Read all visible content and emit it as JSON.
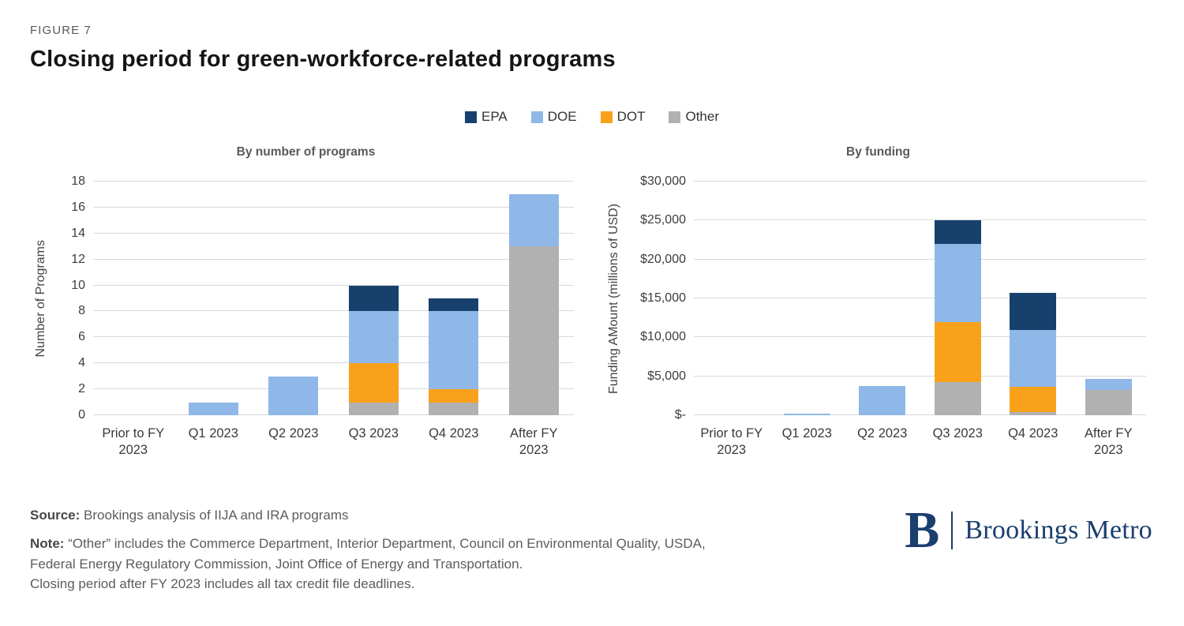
{
  "figure": {
    "eyebrow": "FIGURE 7",
    "title": "Closing period for green-workforce-related programs"
  },
  "legend": [
    {
      "label": "EPA",
      "color": "#17406d"
    },
    {
      "label": "DOE",
      "color": "#8fb8e8"
    },
    {
      "label": "DOT",
      "color": "#f9a11b"
    },
    {
      "label": "Other",
      "color": "#b1b1b1"
    }
  ],
  "chart_data": [
    {
      "type": "bar",
      "stacked": true,
      "title": "By number of programs",
      "xlabel": "",
      "ylabel": "Number of Programs",
      "categories": [
        "Prior to FY 2023",
        "Q1 2023",
        "Q2 2023",
        "Q3 2023",
        "Q4 2023",
        "After FY 2023"
      ],
      "ylim": [
        0,
        18
      ],
      "grid": true,
      "legend_position": "top-center",
      "yticks": [
        {
          "value": 0,
          "label": "0"
        },
        {
          "value": 2,
          "label": "2"
        },
        {
          "value": 4,
          "label": "4"
        },
        {
          "value": 6,
          "label": "6"
        },
        {
          "value": 8,
          "label": "8"
        },
        {
          "value": 10,
          "label": "10"
        },
        {
          "value": 12,
          "label": "12"
        },
        {
          "value": 14,
          "label": "14"
        },
        {
          "value": 16,
          "label": "16"
        },
        {
          "value": 18,
          "label": "18"
        }
      ],
      "series_stack_order": "bottom-to-top",
      "series": [
        {
          "name": "Other",
          "color": "#b1b1b1",
          "values": [
            0,
            0,
            0,
            1,
            1,
            13
          ]
        },
        {
          "name": "DOT",
          "color": "#f9a11b",
          "values": [
            0,
            0,
            0,
            3,
            1,
            0
          ]
        },
        {
          "name": "DOE",
          "color": "#8fb8e8",
          "values": [
            0,
            1,
            3,
            4,
            6,
            4
          ]
        },
        {
          "name": "EPA",
          "color": "#17406d",
          "values": [
            0,
            0,
            0,
            2,
            1,
            0
          ]
        }
      ]
    },
    {
      "type": "bar",
      "stacked": true,
      "title": "By funding",
      "xlabel": "",
      "ylabel": "Funding AMount (millions of USD)",
      "categories": [
        "Prior to FY 2023",
        "Q1 2023",
        "Q2 2023",
        "Q3 2023",
        "Q4 2023",
        "After FY 2023"
      ],
      "ylim": [
        0,
        30000
      ],
      "grid": true,
      "legend_position": "top-center",
      "yticks": [
        {
          "value": 0,
          "label": "$-"
        },
        {
          "value": 5000,
          "label": "$5,000"
        },
        {
          "value": 10000,
          "label": "$10,000"
        },
        {
          "value": 15000,
          "label": "$15,000"
        },
        {
          "value": 20000,
          "label": "$20,000"
        },
        {
          "value": 25000,
          "label": "$25,000"
        },
        {
          "value": 30000,
          "label": "$30,000"
        }
      ],
      "series_stack_order": "bottom-to-top",
      "series": [
        {
          "name": "Other",
          "color": "#b1b1b1",
          "values": [
            0,
            0,
            0,
            4300,
            400,
            3200
          ]
        },
        {
          "name": "DOT",
          "color": "#f9a11b",
          "values": [
            0,
            0,
            0,
            7700,
            3300,
            0
          ]
        },
        {
          "name": "DOE",
          "color": "#8fb8e8",
          "values": [
            0,
            200,
            3800,
            10000,
            7200,
            1500
          ]
        },
        {
          "name": "EPA",
          "color": "#17406d",
          "values": [
            0,
            0,
            0,
            3000,
            4800,
            0
          ]
        }
      ]
    }
  ],
  "footer": {
    "source_label": "Source:",
    "source_text": "Brookings analysis of IIJA and IRA programs",
    "note_label": "Note:",
    "note_line1": "“Other” includes the Commerce Department, Interior Department, Council on Environmental Quality, USDA,",
    "note_line2": "Federal Energy Regulatory Commission, Joint Office of Energy and Transportation.",
    "note_line3": "Closing period after FY 2023 includes all tax credit file deadlines."
  },
  "logo": {
    "b": "B",
    "text": "Brookings Metro",
    "color": "#1a3e6e"
  }
}
